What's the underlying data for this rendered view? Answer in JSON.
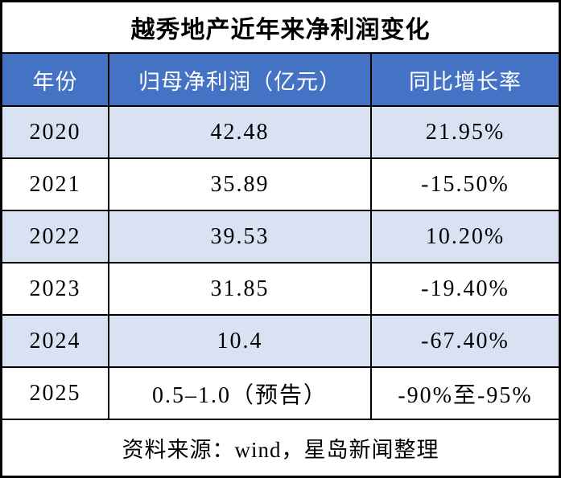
{
  "chart_data": {
    "type": "table",
    "title": "越秀地产近年来净利润变化",
    "columns": [
      "年份",
      "归母净利润（亿元）",
      "同比增长率"
    ],
    "rows": [
      [
        "2020",
        "42.48",
        "21.95%"
      ],
      [
        "2021",
        "35.89",
        "-15.50%"
      ],
      [
        "2022",
        "39.53",
        "10.20%"
      ],
      [
        "2023",
        "31.85",
        "-19.40%"
      ],
      [
        "2024",
        "10.4",
        "-67.40%"
      ],
      [
        "2025",
        "0.5–1.0（预告）",
        "-90%至-95%"
      ]
    ],
    "source": "资料来源：wind，星岛新闻整理",
    "numeric": {
      "years": [
        2020,
        2021,
        2022,
        2023,
        2024,
        2025
      ],
      "net_profit_yi_yuan": [
        42.48,
        35.89,
        39.53,
        31.85,
        10.4,
        "0.5-1.0 (forecast)"
      ],
      "yoy_growth_percent": [
        21.95,
        -15.5,
        10.2,
        -19.4,
        -67.4,
        "-90 to -95"
      ]
    },
    "layout": {
      "header_position": "top",
      "grid": "on",
      "alternating_rows": true
    }
  },
  "colors": {
    "header_bg": "#4472C4",
    "header_text": "#FFFFFF",
    "alt_row_bg": "#D9E2F3",
    "row_bg": "#FFFFFF",
    "border": "#000000",
    "text": "#000000"
  }
}
